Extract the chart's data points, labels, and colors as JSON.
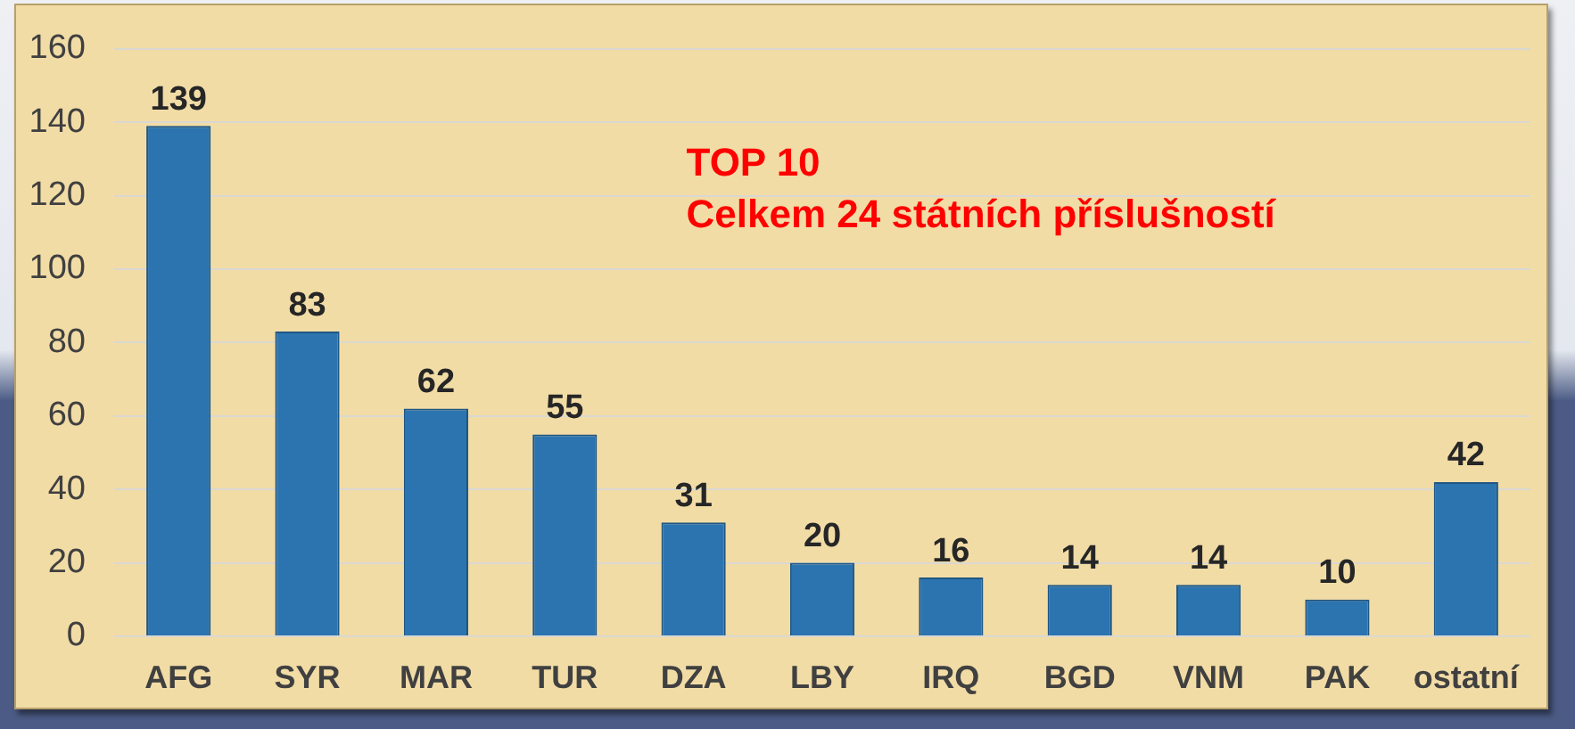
{
  "chart_data": {
    "type": "bar",
    "categories": [
      "AFG",
      "SYR",
      "MAR",
      "TUR",
      "DZA",
      "LBY",
      "IRQ",
      "BGD",
      "VNM",
      "PAK",
      "ostatní"
    ],
    "values": [
      139,
      83,
      62,
      55,
      31,
      20,
      16,
      14,
      14,
      10,
      42
    ],
    "color": "#2b74b0",
    "ylim": [
      0,
      160
    ],
    "yticks": [
      0,
      20,
      40,
      60,
      80,
      100,
      120,
      140,
      160
    ],
    "grid": "y",
    "data_labels": true,
    "annotations": [
      "TOP 10",
      "Celkem 24 státních příslušností"
    ]
  }
}
